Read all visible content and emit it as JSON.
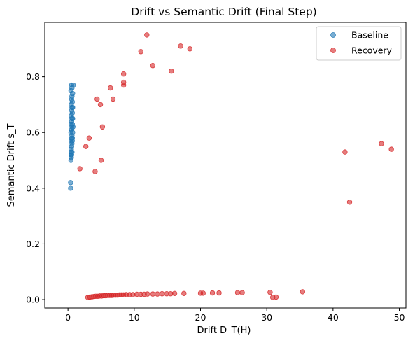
{
  "chart_data": {
    "type": "scatter",
    "title": "Drift vs Semantic Drift (Final Step)",
    "xlabel": "Drift D_T(H)",
    "ylabel": "Semantic Drift s_T",
    "xlim": [
      -3.5,
      51
    ],
    "ylim": [
      -0.03,
      0.995
    ],
    "xticks": [
      0,
      10,
      20,
      30,
      40,
      50
    ],
    "yticks": [
      0.0,
      0.2,
      0.4,
      0.6,
      0.8
    ],
    "ytick_labels": [
      "0.0",
      "0.2",
      "0.4",
      "0.6",
      "0.8"
    ],
    "grid": false,
    "legend_position": "top-right",
    "series": [
      {
        "name": "Baseline",
        "color": "#1f77b4",
        "points": [
          [
            0.4,
            0.4
          ],
          [
            0.4,
            0.42
          ],
          [
            0.45,
            0.5
          ],
          [
            0.5,
            0.51
          ],
          [
            0.5,
            0.52
          ],
          [
            0.55,
            0.52
          ],
          [
            0.6,
            0.53
          ],
          [
            0.5,
            0.54
          ],
          [
            0.55,
            0.55
          ],
          [
            0.6,
            0.56
          ],
          [
            0.5,
            0.57
          ],
          [
            0.65,
            0.57
          ],
          [
            0.55,
            0.58
          ],
          [
            0.6,
            0.59
          ],
          [
            0.45,
            0.6
          ],
          [
            0.7,
            0.6
          ],
          [
            0.55,
            0.61
          ],
          [
            0.6,
            0.62
          ],
          [
            0.5,
            0.63
          ],
          [
            0.65,
            0.63
          ],
          [
            0.55,
            0.64
          ],
          [
            0.6,
            0.65
          ],
          [
            0.7,
            0.65
          ],
          [
            0.5,
            0.66
          ],
          [
            0.65,
            0.67
          ],
          [
            0.55,
            0.68
          ],
          [
            0.6,
            0.69
          ],
          [
            0.7,
            0.69
          ],
          [
            0.5,
            0.7
          ],
          [
            0.65,
            0.71
          ],
          [
            0.55,
            0.72
          ],
          [
            0.6,
            0.73
          ],
          [
            0.7,
            0.74
          ],
          [
            0.45,
            0.75
          ],
          [
            0.6,
            0.76
          ],
          [
            0.55,
            0.77
          ],
          [
            0.8,
            0.77
          ],
          [
            0.65,
            0.58
          ],
          [
            0.75,
            0.62
          ],
          [
            0.5,
            0.53
          ]
        ]
      },
      {
        "name": "Recovery",
        "color": "#d62728",
        "points": [
          [
            1.8,
            0.47
          ],
          [
            2.7,
            0.55
          ],
          [
            3.2,
            0.58
          ],
          [
            4.1,
            0.46
          ],
          [
            4.4,
            0.72
          ],
          [
            4.9,
            0.7
          ],
          [
            5.0,
            0.5
          ],
          [
            5.2,
            0.62
          ],
          [
            6.4,
            0.76
          ],
          [
            6.8,
            0.72
          ],
          [
            8.4,
            0.81
          ],
          [
            8.4,
            0.77
          ],
          [
            8.4,
            0.78
          ],
          [
            11.0,
            0.89
          ],
          [
            11.9,
            0.95
          ],
          [
            12.8,
            0.84
          ],
          [
            15.6,
            0.82
          ],
          [
            17.0,
            0.91
          ],
          [
            18.4,
            0.9
          ],
          [
            41.8,
            0.53
          ],
          [
            42.5,
            0.35
          ],
          [
            47.3,
            0.56
          ],
          [
            48.8,
            0.54
          ],
          [
            3.0,
            0.008
          ],
          [
            3.3,
            0.009
          ],
          [
            3.6,
            0.01
          ],
          [
            3.9,
            0.011
          ],
          [
            4.2,
            0.012
          ],
          [
            4.5,
            0.012
          ],
          [
            4.8,
            0.013
          ],
          [
            5.1,
            0.013
          ],
          [
            5.4,
            0.014
          ],
          [
            5.7,
            0.014
          ],
          [
            6.0,
            0.015
          ],
          [
            6.3,
            0.015
          ],
          [
            6.6,
            0.015
          ],
          [
            6.9,
            0.016
          ],
          [
            7.2,
            0.016
          ],
          [
            7.5,
            0.016
          ],
          [
            7.8,
            0.017
          ],
          [
            8.1,
            0.017
          ],
          [
            8.4,
            0.017
          ],
          [
            8.8,
            0.018
          ],
          [
            9.3,
            0.018
          ],
          [
            9.8,
            0.018
          ],
          [
            10.4,
            0.019
          ],
          [
            11.0,
            0.019
          ],
          [
            11.5,
            0.019
          ],
          [
            12.0,
            0.02
          ],
          [
            12.8,
            0.02
          ],
          [
            13.5,
            0.02
          ],
          [
            14.2,
            0.021
          ],
          [
            14.9,
            0.021
          ],
          [
            15.5,
            0.021
          ],
          [
            16.1,
            0.022
          ],
          [
            17.5,
            0.022
          ],
          [
            20.0,
            0.023
          ],
          [
            20.4,
            0.023
          ],
          [
            21.8,
            0.024
          ],
          [
            22.8,
            0.024
          ],
          [
            25.6,
            0.025
          ],
          [
            26.3,
            0.025
          ],
          [
            30.5,
            0.026
          ],
          [
            30.9,
            0.008
          ],
          [
            31.4,
            0.009
          ],
          [
            35.4,
            0.028
          ]
        ]
      }
    ]
  }
}
